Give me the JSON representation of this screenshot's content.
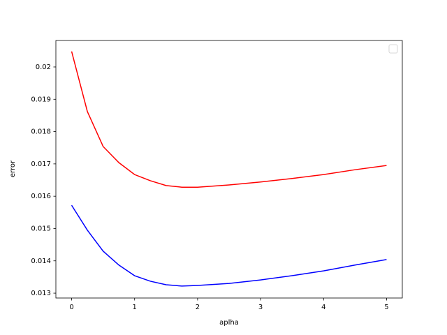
{
  "chart_data": {
    "type": "line",
    "x_label": "aplha",
    "y_label": "error",
    "x": [
      0,
      0.25,
      0.5,
      0.75,
      1,
      1.25,
      1.5,
      1.75,
      2,
      2.5,
      3,
      3.5,
      4,
      4.5,
      5
    ],
    "series": [
      {
        "color": "#ff0000",
        "values": [
          0.02048,
          0.01862,
          0.01754,
          0.01704,
          0.01667,
          0.01648,
          0.01633,
          0.01628,
          0.01628,
          0.01635,
          0.01644,
          0.01655,
          0.01667,
          0.01682,
          0.01695
        ]
      },
      {
        "color": "#0000ff",
        "values": [
          0.01572,
          0.01495,
          0.0143,
          0.01387,
          0.01354,
          0.01337,
          0.01326,
          0.01322,
          0.01324,
          0.0133,
          0.01341,
          0.01354,
          0.01369,
          0.01387,
          0.01404
        ]
      }
    ],
    "xlim": [
      -0.25,
      5.25
    ],
    "xticks": [
      0,
      1,
      2,
      3,
      4,
      5
    ],
    "ylim": [
      0.01285,
      0.02082
    ],
    "yticks": [
      0.013,
      0.014,
      0.015,
      0.016,
      0.017,
      0.018,
      0.019,
      0.02
    ]
  }
}
